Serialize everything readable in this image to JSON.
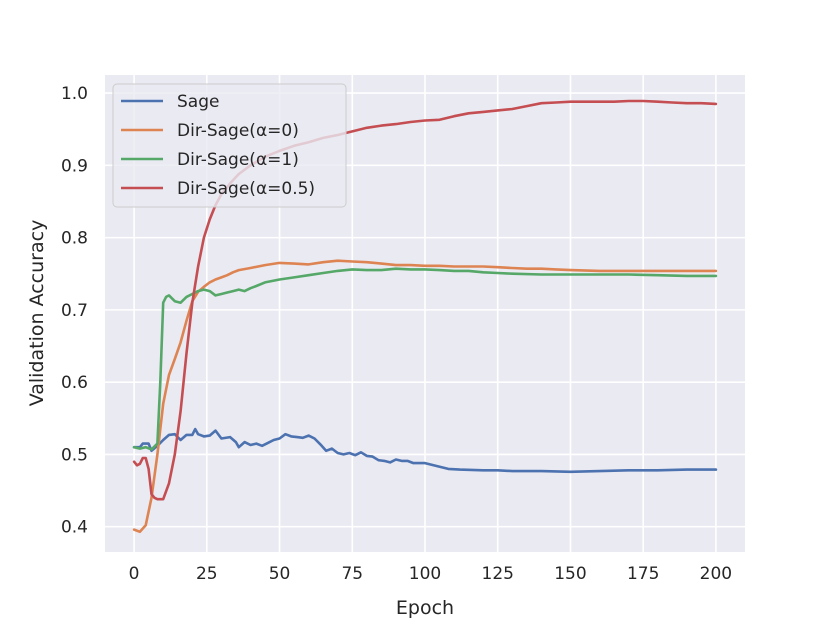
{
  "chart_data": {
    "type": "line",
    "title": "",
    "xlabel": "Epoch",
    "ylabel": "Validation Accuracy",
    "xlim": [
      -10,
      210
    ],
    "ylim": [
      0.365,
      1.025
    ],
    "xticks": [
      0,
      25,
      50,
      75,
      100,
      125,
      150,
      175,
      200
    ],
    "yticks": [
      0.4,
      0.5,
      0.6,
      0.7,
      0.8,
      0.9,
      1.0
    ],
    "ytick_labels": [
      "0.4",
      "0.5",
      "0.6",
      "0.7",
      "0.8",
      "0.9",
      "1.0"
    ],
    "grid": true,
    "legend_position": "top-left",
    "series": [
      {
        "name": "Sage",
        "color": "#4c72b0",
        "points": [
          [
            0,
            0.51
          ],
          [
            2,
            0.51
          ],
          [
            3,
            0.515
          ],
          [
            5,
            0.515
          ],
          [
            6,
            0.505
          ],
          [
            8,
            0.512
          ],
          [
            10,
            0.52
          ],
          [
            12,
            0.527
          ],
          [
            14,
            0.528
          ],
          [
            16,
            0.52
          ],
          [
            18,
            0.527
          ],
          [
            20,
            0.527
          ],
          [
            21,
            0.535
          ],
          [
            22,
            0.528
          ],
          [
            24,
            0.525
          ],
          [
            26,
            0.526
          ],
          [
            28,
            0.533
          ],
          [
            30,
            0.522
          ],
          [
            33,
            0.524
          ],
          [
            35,
            0.517
          ],
          [
            36,
            0.51
          ],
          [
            38,
            0.517
          ],
          [
            40,
            0.513
          ],
          [
            42,
            0.515
          ],
          [
            44,
            0.512
          ],
          [
            46,
            0.516
          ],
          [
            48,
            0.52
          ],
          [
            50,
            0.522
          ],
          [
            52,
            0.528
          ],
          [
            54,
            0.525
          ],
          [
            56,
            0.524
          ],
          [
            58,
            0.523
          ],
          [
            60,
            0.526
          ],
          [
            62,
            0.522
          ],
          [
            64,
            0.514
          ],
          [
            66,
            0.505
          ],
          [
            68,
            0.508
          ],
          [
            70,
            0.502
          ],
          [
            72,
            0.5
          ],
          [
            74,
            0.502
          ],
          [
            76,
            0.499
          ],
          [
            78,
            0.503
          ],
          [
            80,
            0.498
          ],
          [
            82,
            0.497
          ],
          [
            84,
            0.492
          ],
          [
            86,
            0.491
          ],
          [
            88,
            0.489
          ],
          [
            90,
            0.493
          ],
          [
            92,
            0.491
          ],
          [
            94,
            0.491
          ],
          [
            96,
            0.488
          ],
          [
            100,
            0.488
          ],
          [
            104,
            0.484
          ],
          [
            108,
            0.48
          ],
          [
            112,
            0.479
          ],
          [
            120,
            0.478
          ],
          [
            125,
            0.478
          ],
          [
            130,
            0.477
          ],
          [
            140,
            0.477
          ],
          [
            150,
            0.476
          ],
          [
            160,
            0.477
          ],
          [
            170,
            0.478
          ],
          [
            180,
            0.478
          ],
          [
            190,
            0.479
          ],
          [
            200,
            0.479
          ]
        ]
      },
      {
        "name": "Dir-Sage(α=0)",
        "color": "#dd8452",
        "points": [
          [
            0,
            0.396
          ],
          [
            2,
            0.393
          ],
          [
            4,
            0.402
          ],
          [
            6,
            0.44
          ],
          [
            8,
            0.5
          ],
          [
            10,
            0.57
          ],
          [
            12,
            0.61
          ],
          [
            14,
            0.632
          ],
          [
            16,
            0.655
          ],
          [
            18,
            0.685
          ],
          [
            20,
            0.712
          ],
          [
            22,
            0.725
          ],
          [
            24,
            0.732
          ],
          [
            26,
            0.738
          ],
          [
            28,
            0.742
          ],
          [
            30,
            0.745
          ],
          [
            32,
            0.748
          ],
          [
            34,
            0.752
          ],
          [
            36,
            0.755
          ],
          [
            40,
            0.758
          ],
          [
            45,
            0.762
          ],
          [
            50,
            0.765
          ],
          [
            55,
            0.764
          ],
          [
            60,
            0.763
          ],
          [
            65,
            0.766
          ],
          [
            70,
            0.768
          ],
          [
            75,
            0.767
          ],
          [
            80,
            0.766
          ],
          [
            85,
            0.764
          ],
          [
            90,
            0.762
          ],
          [
            95,
            0.762
          ],
          [
            100,
            0.761
          ],
          [
            105,
            0.761
          ],
          [
            110,
            0.76
          ],
          [
            115,
            0.76
          ],
          [
            120,
            0.76
          ],
          [
            125,
            0.759
          ],
          [
            130,
            0.758
          ],
          [
            135,
            0.757
          ],
          [
            140,
            0.757
          ],
          [
            145,
            0.756
          ],
          [
            150,
            0.755
          ],
          [
            160,
            0.754
          ],
          [
            170,
            0.754
          ],
          [
            180,
            0.754
          ],
          [
            190,
            0.754
          ],
          [
            200,
            0.754
          ]
        ]
      },
      {
        "name": "Dir-Sage(α=1)",
        "color": "#55a868",
        "points": [
          [
            0,
            0.51
          ],
          [
            2,
            0.508
          ],
          [
            4,
            0.51
          ],
          [
            6,
            0.507
          ],
          [
            8,
            0.515
          ],
          [
            9,
            0.6
          ],
          [
            10,
            0.71
          ],
          [
            11,
            0.718
          ],
          [
            12,
            0.72
          ],
          [
            14,
            0.712
          ],
          [
            16,
            0.71
          ],
          [
            18,
            0.718
          ],
          [
            20,
            0.722
          ],
          [
            22,
            0.726
          ],
          [
            24,
            0.728
          ],
          [
            26,
            0.726
          ],
          [
            28,
            0.72
          ],
          [
            30,
            0.722
          ],
          [
            32,
            0.724
          ],
          [
            34,
            0.726
          ],
          [
            36,
            0.728
          ],
          [
            38,
            0.726
          ],
          [
            40,
            0.73
          ],
          [
            42,
            0.733
          ],
          [
            45,
            0.738
          ],
          [
            50,
            0.742
          ],
          [
            55,
            0.745
          ],
          [
            60,
            0.748
          ],
          [
            65,
            0.751
          ],
          [
            70,
            0.754
          ],
          [
            75,
            0.756
          ],
          [
            80,
            0.755
          ],
          [
            85,
            0.755
          ],
          [
            90,
            0.757
          ],
          [
            95,
            0.756
          ],
          [
            100,
            0.756
          ],
          [
            105,
            0.755
          ],
          [
            110,
            0.754
          ],
          [
            115,
            0.754
          ],
          [
            120,
            0.752
          ],
          [
            125,
            0.751
          ],
          [
            130,
            0.75
          ],
          [
            140,
            0.749
          ],
          [
            150,
            0.749
          ],
          [
            160,
            0.749
          ],
          [
            170,
            0.749
          ],
          [
            180,
            0.748
          ],
          [
            190,
            0.747
          ],
          [
            200,
            0.747
          ]
        ]
      },
      {
        "name": "Dir-Sage(α=0.5)",
        "color": "#c44e52",
        "points": [
          [
            0,
            0.49
          ],
          [
            1,
            0.485
          ],
          [
            2,
            0.487
          ],
          [
            3,
            0.495
          ],
          [
            4,
            0.495
          ],
          [
            5,
            0.48
          ],
          [
            6,
            0.445
          ],
          [
            7,
            0.44
          ],
          [
            8,
            0.438
          ],
          [
            10,
            0.438
          ],
          [
            12,
            0.46
          ],
          [
            14,
            0.5
          ],
          [
            16,
            0.56
          ],
          [
            18,
            0.64
          ],
          [
            20,
            0.71
          ],
          [
            22,
            0.76
          ],
          [
            24,
            0.8
          ],
          [
            26,
            0.825
          ],
          [
            28,
            0.845
          ],
          [
            30,
            0.86
          ],
          [
            33,
            0.875
          ],
          [
            36,
            0.888
          ],
          [
            40,
            0.9
          ],
          [
            45,
            0.912
          ],
          [
            50,
            0.92
          ],
          [
            55,
            0.927
          ],
          [
            60,
            0.932
          ],
          [
            65,
            0.938
          ],
          [
            70,
            0.942
          ],
          [
            75,
            0.947
          ],
          [
            80,
            0.952
          ],
          [
            85,
            0.955
          ],
          [
            90,
            0.957
          ],
          [
            95,
            0.96
          ],
          [
            100,
            0.962
          ],
          [
            105,
            0.963
          ],
          [
            110,
            0.968
          ],
          [
            115,
            0.972
          ],
          [
            120,
            0.974
          ],
          [
            125,
            0.976
          ],
          [
            130,
            0.978
          ],
          [
            135,
            0.982
          ],
          [
            140,
            0.986
          ],
          [
            145,
            0.987
          ],
          [
            150,
            0.988
          ],
          [
            155,
            0.988
          ],
          [
            160,
            0.988
          ],
          [
            165,
            0.988
          ],
          [
            170,
            0.989
          ],
          [
            175,
            0.989
          ],
          [
            180,
            0.988
          ],
          [
            185,
            0.987
          ],
          [
            190,
            0.986
          ],
          [
            195,
            0.986
          ],
          [
            200,
            0.985
          ]
        ]
      }
    ]
  }
}
